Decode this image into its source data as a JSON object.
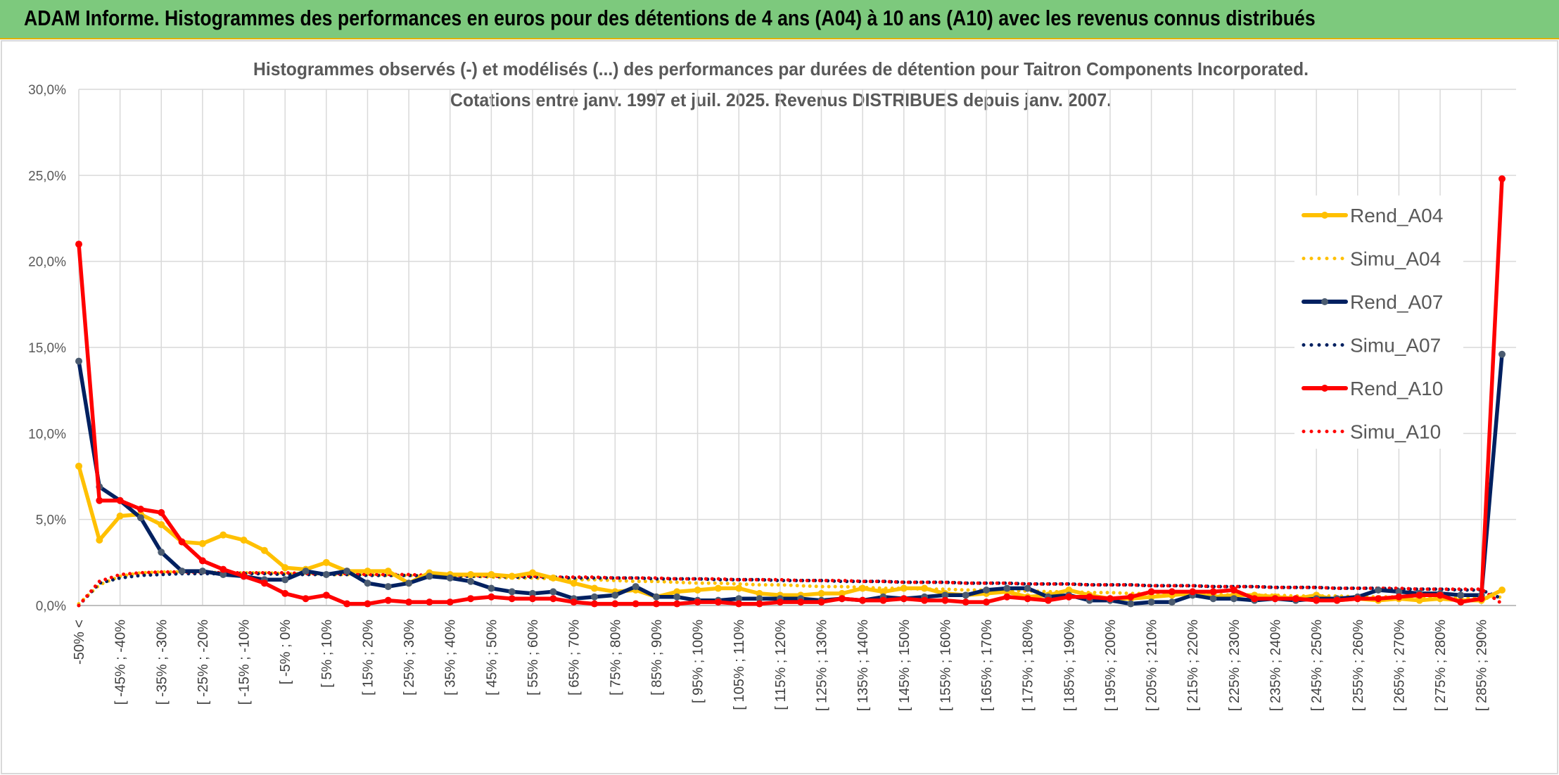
{
  "header": {
    "title": "ADAM Informe. Histogrammes des performances en euros pour des détentions de 4 ans (A04) à 10 ans (A10) avec les revenus connus distribués"
  },
  "chart_data": {
    "type": "line",
    "title": "Histogrammes observés (-) et modélisés (...) des performances par durées de détention pour Taitron Components Incorporated.",
    "subtitle": "Cotations entre janv. 1997 et juil. 2025. Revenus DISTRIBUES depuis janv. 2007.",
    "categories": [
      "-50% <",
      null,
      "[ -45% ; -40%",
      null,
      "[ -35% ; -30%",
      null,
      "[ -25% ; -20%",
      null,
      "[ -15% ; -10%",
      null,
      "[ -5% ; 0%",
      null,
      "[ 5% ; 10%",
      null,
      "[ 15% ; 20%",
      null,
      "[ 25% ; 30%",
      null,
      "[ 35% ; 40%",
      null,
      "[ 45% ; 50%",
      null,
      "[ 55% ; 60%",
      null,
      "[ 65% ; 70%",
      null,
      "[ 75% ; 80%",
      null,
      "[ 85% ; 90%",
      null,
      "[ 95% ; 100%",
      null,
      "[ 105% ; 110%",
      null,
      "[ 115% ; 120%",
      null,
      "[ 125% ; 130%",
      null,
      "[ 135% ; 140%",
      null,
      "[ 145% ; 150%",
      null,
      "[ 155% ; 160%",
      null,
      "[ 165% ; 170%",
      null,
      "[ 175% ; 180%",
      null,
      "[ 185% ; 190%",
      null,
      "[ 195% ; 200%",
      null,
      "[ 205% ; 210%",
      null,
      "[ 215% ; 220%",
      null,
      "[ 225% ; 230%",
      null,
      "[ 235% ; 240%",
      null,
      "[ 245% ; 250%",
      null,
      "[ 255% ; 260%",
      null,
      "[ 265% ; 270%",
      null,
      "[ 275% ; 280%",
      null,
      "[ 285% ; 290%",
      null
    ],
    "ylim": [
      0,
      30
    ],
    "yticks": [
      {
        "value": 0,
        "label": "0,0%"
      },
      {
        "value": 5,
        "label": "5,0%"
      },
      {
        "value": 10,
        "label": "10,0%"
      },
      {
        "value": 15,
        "label": "15,0%"
      },
      {
        "value": 20,
        "label": "20,0%"
      },
      {
        "value": 25,
        "label": "25,0%"
      },
      {
        "value": 30,
        "label": "30,0%"
      }
    ],
    "grid": true,
    "legend": "right",
    "series": [
      {
        "name": "Rend_A04",
        "color": "#ffc000",
        "style": "solid",
        "values": [
          8.1,
          3.8,
          5.2,
          5.3,
          4.7,
          3.7,
          3.6,
          4.1,
          3.8,
          3.2,
          2.2,
          2.1,
          2.5,
          2.0,
          2.0,
          2.0,
          1.3,
          1.9,
          1.8,
          1.8,
          1.8,
          1.7,
          1.9,
          1.6,
          1.3,
          1.0,
          0.8,
          0.9,
          0.5,
          0.8,
          0.9,
          1.0,
          1.0,
          0.7,
          0.6,
          0.6,
          0.7,
          0.7,
          1.0,
          0.8,
          1.0,
          1.0,
          0.7,
          0.6,
          0.7,
          0.8,
          0.5,
          0.6,
          0.9,
          0.6,
          0.4,
          0.4,
          0.5,
          0.6,
          0.7,
          0.5,
          0.6,
          0.6,
          0.5,
          0.4,
          0.6,
          0.3,
          0.4,
          0.3,
          0.4,
          0.3,
          0.4,
          0.3,
          0.3,
          0.9
        ]
      },
      {
        "name": "Simu_A04",
        "color": "#ffc000",
        "style": "dotted",
        "values": [
          0.1,
          1.2,
          1.7,
          1.9,
          1.95,
          1.95,
          1.95,
          1.9,
          1.9,
          1.9,
          1.85,
          1.85,
          1.8,
          1.8,
          1.8,
          1.75,
          1.75,
          1.7,
          1.7,
          1.7,
          1.65,
          1.6,
          1.6,
          1.55,
          1.5,
          1.5,
          1.45,
          1.4,
          1.4,
          1.35,
          1.3,
          1.3,
          1.25,
          1.2,
          1.2,
          1.15,
          1.1,
          1.1,
          1.05,
          1.0,
          1.0,
          0.95,
          0.95,
          0.9,
          0.9,
          0.85,
          0.85,
          0.8,
          0.8,
          0.75,
          0.75,
          0.7,
          0.7,
          0.7,
          0.65,
          0.65,
          0.6,
          0.6,
          0.6,
          0.55,
          0.55,
          0.55,
          0.5,
          0.5,
          0.5,
          0.45,
          0.45,
          0.45,
          0.4,
          0.5
        ]
      },
      {
        "name": "Rend_A07",
        "color": "#002060",
        "marker_color": "#4b5b70",
        "style": "solid",
        "values": [
          14.2,
          6.9,
          6.1,
          5.1,
          3.1,
          2.0,
          2.0,
          1.8,
          1.7,
          1.5,
          1.5,
          2.0,
          1.8,
          2.0,
          1.3,
          1.1,
          1.3,
          1.7,
          1.6,
          1.4,
          1.0,
          0.8,
          0.7,
          0.8,
          0.4,
          0.5,
          0.6,
          1.1,
          0.5,
          0.5,
          0.3,
          0.3,
          0.4,
          0.4,
          0.4,
          0.4,
          0.3,
          0.4,
          0.3,
          0.5,
          0.4,
          0.5,
          0.6,
          0.6,
          0.9,
          1.0,
          1.0,
          0.5,
          0.6,
          0.3,
          0.3,
          0.1,
          0.2,
          0.2,
          0.6,
          0.4,
          0.4,
          0.3,
          0.4,
          0.3,
          0.4,
          0.4,
          0.5,
          0.9,
          0.8,
          0.7,
          0.7,
          0.6,
          0.6,
          14.6
        ]
      },
      {
        "name": "Simu_A07",
        "color": "#002060",
        "style": "dotted",
        "values": [
          0.0,
          1.3,
          1.6,
          1.75,
          1.8,
          1.85,
          1.85,
          1.85,
          1.85,
          1.85,
          1.8,
          1.8,
          1.8,
          1.8,
          1.75,
          1.75,
          1.75,
          1.7,
          1.7,
          1.7,
          1.7,
          1.65,
          1.65,
          1.65,
          1.6,
          1.6,
          1.6,
          1.6,
          1.55,
          1.55,
          1.55,
          1.5,
          1.5,
          1.5,
          1.45,
          1.45,
          1.45,
          1.4,
          1.4,
          1.4,
          1.35,
          1.35,
          1.35,
          1.3,
          1.3,
          1.3,
          1.25,
          1.25,
          1.25,
          1.2,
          1.2,
          1.2,
          1.15,
          1.15,
          1.15,
          1.1,
          1.1,
          1.1,
          1.05,
          1.05,
          1.05,
          1.0,
          1.0,
          1.0,
          0.95,
          0.95,
          0.95,
          0.9,
          0.9,
          0.4
        ]
      },
      {
        "name": "Rend_A10",
        "color": "#ff0000",
        "style": "solid",
        "values": [
          21.0,
          6.1,
          6.1,
          5.6,
          5.4,
          3.7,
          2.6,
          2.1,
          1.7,
          1.3,
          0.7,
          0.4,
          0.6,
          0.1,
          0.1,
          0.3,
          0.2,
          0.2,
          0.2,
          0.4,
          0.5,
          0.4,
          0.4,
          0.4,
          0.2,
          0.1,
          0.1,
          0.1,
          0.1,
          0.1,
          0.2,
          0.2,
          0.1,
          0.1,
          0.2,
          0.2,
          0.2,
          0.4,
          0.3,
          0.3,
          0.4,
          0.3,
          0.3,
          0.2,
          0.2,
          0.5,
          0.4,
          0.3,
          0.5,
          0.5,
          0.4,
          0.5,
          0.8,
          0.8,
          0.8,
          0.8,
          0.9,
          0.4,
          0.4,
          0.4,
          0.3,
          0.3,
          0.4,
          0.4,
          0.5,
          0.6,
          0.6,
          0.2,
          0.4,
          24.8
        ]
      },
      {
        "name": "Simu_A10",
        "color": "#ff0000",
        "style": "dotted",
        "values": [
          0.0,
          1.4,
          1.8,
          1.9,
          1.95,
          1.95,
          1.95,
          1.9,
          1.9,
          1.9,
          1.9,
          1.85,
          1.85,
          1.85,
          1.8,
          1.8,
          1.8,
          1.75,
          1.75,
          1.75,
          1.7,
          1.7,
          1.7,
          1.65,
          1.65,
          1.65,
          1.6,
          1.6,
          1.6,
          1.55,
          1.55,
          1.55,
          1.5,
          1.5,
          1.5,
          1.45,
          1.45,
          1.45,
          1.4,
          1.4,
          1.35,
          1.35,
          1.35,
          1.3,
          1.3,
          1.3,
          1.25,
          1.25,
          1.25,
          1.2,
          1.2,
          1.2,
          1.15,
          1.15,
          1.15,
          1.1,
          1.1,
          1.1,
          1.05,
          1.05,
          1.05,
          1.0,
          1.0,
          1.0,
          1.0,
          0.95,
          0.95,
          0.95,
          0.95,
          0.1
        ]
      }
    ]
  }
}
